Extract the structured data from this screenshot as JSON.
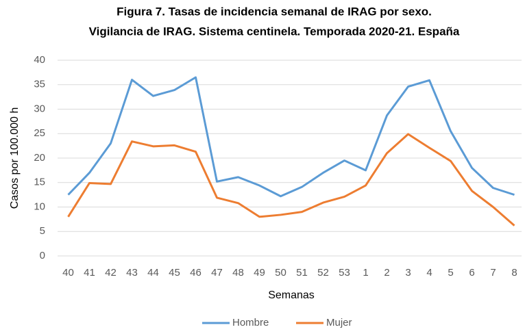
{
  "chart_data": {
    "type": "line",
    "title": [
      "Figura 7. Tasas de incidencia semanal de IRAG por sexo.",
      "Vigilancia de IRAG. Sistema centinela. Temporada 2020-21. España"
    ],
    "x_label": "Semanas",
    "y_label": "Casos por 100.000 h",
    "categories": [
      "40",
      "41",
      "42",
      "43",
      "44",
      "45",
      "46",
      "47",
      "48",
      "49",
      "50",
      "51",
      "52",
      "53",
      "1",
      "2",
      "3",
      "4",
      "5",
      "6",
      "7",
      "8"
    ],
    "series": [
      {
        "name": "Hombre",
        "color": "#5b9bd5",
        "values": [
          12.5,
          17,
          23,
          36,
          32.7,
          33.9,
          36.5,
          15.2,
          16.1,
          14.4,
          12.2,
          14.1,
          17,
          19.5,
          17.5,
          28.7,
          34.6,
          35.9,
          25.5,
          18,
          13.9,
          12.5
        ]
      },
      {
        "name": "Mujer",
        "color": "#ed7d31",
        "values": [
          8,
          14.9,
          14.7,
          23.4,
          22.4,
          22.6,
          21.3,
          11.9,
          10.8,
          8,
          8.4,
          9,
          10.9,
          12.1,
          14.4,
          21,
          24.9,
          22.1,
          19.4,
          13.3,
          10,
          6.2
        ]
      }
    ],
    "ylim": [
      0,
      40
    ],
    "yticks": [
      0,
      5,
      10,
      15,
      20,
      25,
      30,
      35,
      40
    ],
    "grid": true,
    "legend": "bottom"
  }
}
